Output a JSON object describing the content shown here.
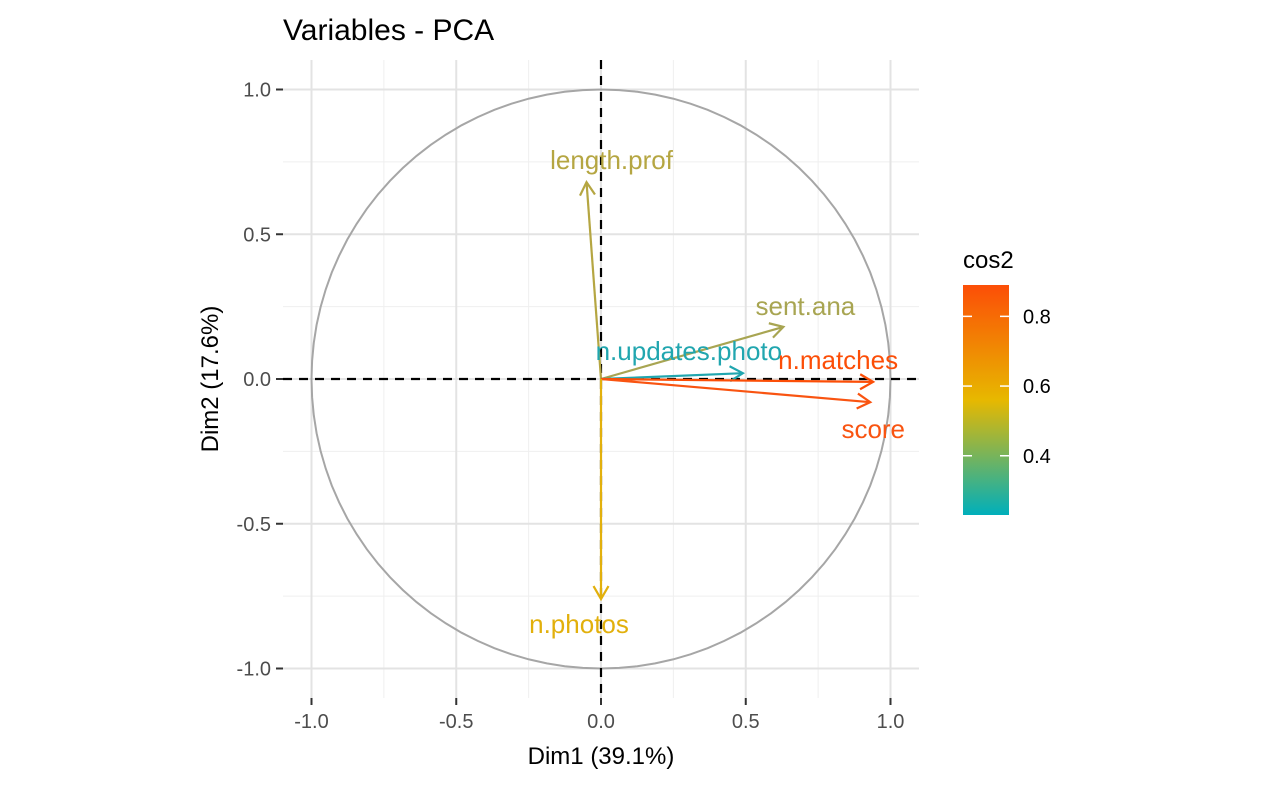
{
  "chart_data": {
    "type": "scatter",
    "subtype": "pca-variable-correlation-circle",
    "title": "Variables - PCA",
    "xlabel": "Dim1 (39.1%)",
    "ylabel": "Dim2 (17.6%)",
    "xlim": [
      -1.0,
      1.0
    ],
    "ylim": [
      -1.0,
      1.0
    ],
    "x_ticks": [
      -1.0,
      -0.5,
      0.0,
      0.5,
      1.0
    ],
    "y_ticks": [
      -1.0,
      -0.5,
      0.0,
      0.5,
      1.0
    ],
    "x_tick_labels": [
      "-1.0",
      "-0.5",
      "0.0",
      "0.5",
      "1.0"
    ],
    "y_tick_labels": [
      "-1.0",
      "-0.5",
      "0.0",
      "0.5",
      "1.0"
    ],
    "grid": true,
    "reference_lines": "dashed lines at x = 0 and y = 0",
    "unit_circle": true,
    "legend": {
      "title": "cos2",
      "position": "right",
      "ticks": [
        0.4,
        0.6,
        0.8
      ],
      "tick_labels": [
        "0.4",
        "0.6",
        "0.8"
      ],
      "range": [
        0.23,
        0.89
      ],
      "gradient": [
        "#00AFBB",
        "#E7B800",
        "#FC4E07"
      ]
    },
    "variables": [
      {
        "name": "length.prof",
        "x": -0.05,
        "y": 0.68,
        "cos2": 0.47,
        "color": "#B5A642"
      },
      {
        "name": "sent.ana",
        "x": 0.63,
        "y": 0.18,
        "cos2": 0.43,
        "color": "#A8A552"
      },
      {
        "name": "n.updates.photo",
        "x": 0.49,
        "y": 0.02,
        "cos2": 0.24,
        "color": "#21A6AF"
      },
      {
        "name": "n.matches",
        "x": 0.94,
        "y": -0.01,
        "cos2": 0.88,
        "color": "#FC4E07"
      },
      {
        "name": "score",
        "x": 0.93,
        "y": -0.08,
        "cos2": 0.87,
        "color": "#F95411"
      },
      {
        "name": "n.photos",
        "x": 0.0,
        "y": -0.76,
        "cos2": 0.58,
        "color": "#E2B00C"
      }
    ]
  }
}
